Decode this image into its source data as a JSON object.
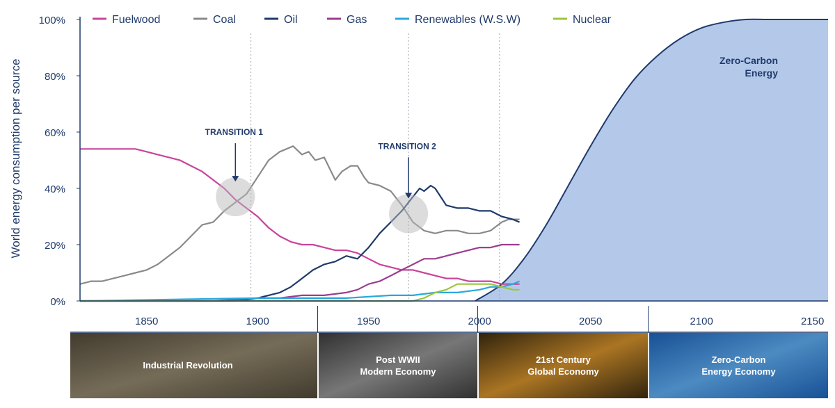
{
  "chart_data": {
    "type": "line",
    "xlabel": "",
    "ylabel": "World energy consumption per source",
    "xlim": [
      1820,
      2157
    ],
    "ylim": [
      0,
      100
    ],
    "x_ticks": [
      "1850",
      "1900",
      "1950",
      "2000",
      "2050",
      "2100",
      "2150"
    ],
    "y_ticks": [
      "0%",
      "20%",
      "40%",
      "60%",
      "80%",
      "100%"
    ],
    "grid": false,
    "legend_position": "top",
    "series": [
      {
        "name": "Fuelwood",
        "color": "#c8449a",
        "x": [
          1820,
          1830,
          1840,
          1845,
          1850,
          1855,
          1860,
          1865,
          1870,
          1875,
          1880,
          1885,
          1890,
          1895,
          1900,
          1905,
          1910,
          1915,
          1920,
          1925,
          1930,
          1935,
          1940,
          1945,
          1950,
          1955,
          1960,
          1965,
          1970,
          1975,
          1980,
          1985,
          1990,
          1995,
          2000,
          2005,
          2010,
          2015,
          2018
        ],
        "y": [
          54,
          54,
          54,
          54,
          53,
          52,
          51,
          50,
          48,
          46,
          43,
          40,
          36,
          33,
          30,
          26,
          23,
          21,
          20,
          20,
          19,
          18,
          18,
          17,
          15,
          13,
          12,
          11,
          11,
          10,
          9,
          8,
          8,
          7,
          7,
          7,
          6,
          6,
          6
        ]
      },
      {
        "name": "Coal",
        "color": "#8a8a8a",
        "x": [
          1820,
          1825,
          1830,
          1835,
          1840,
          1845,
          1850,
          1855,
          1860,
          1865,
          1870,
          1875,
          1880,
          1885,
          1890,
          1895,
          1900,
          1905,
          1910,
          1913,
          1916,
          1920,
          1923,
          1926,
          1930,
          1935,
          1938,
          1942,
          1945,
          1948,
          1950,
          1955,
          1960,
          1965,
          1970,
          1975,
          1980,
          1985,
          1990,
          1995,
          2000,
          2005,
          2010,
          2013,
          2018
        ],
        "y": [
          6,
          7,
          7,
          8,
          9,
          10,
          11,
          13,
          16,
          19,
          23,
          27,
          28,
          32,
          35,
          38,
          44,
          50,
          53,
          54,
          55,
          52,
          53,
          50,
          51,
          43,
          46,
          48,
          48,
          44,
          42,
          41,
          39,
          34,
          28,
          25,
          24,
          25,
          25,
          24,
          24,
          25,
          28,
          29,
          29
        ]
      },
      {
        "name": "Oil",
        "color": "#1f3a6b",
        "x": [
          1820,
          1870,
          1880,
          1890,
          1900,
          1905,
          1910,
          1915,
          1920,
          1925,
          1930,
          1935,
          1940,
          1945,
          1950,
          1955,
          1960,
          1965,
          1970,
          1973,
          1975,
          1978,
          1980,
          1985,
          1990,
          1995,
          2000,
          2005,
          2010,
          2015,
          2018
        ],
        "y": [
          0,
          0,
          0,
          0,
          1,
          2,
          3,
          5,
          8,
          11,
          13,
          14,
          16,
          15,
          19,
          24,
          28,
          32,
          37,
          40,
          39,
          41,
          40,
          34,
          33,
          33,
          32,
          32,
          30,
          29,
          28
        ]
      },
      {
        "name": "Gas",
        "color": "#9c3d8e",
        "x": [
          1820,
          1880,
          1900,
          1910,
          1920,
          1930,
          1940,
          1945,
          1950,
          1955,
          1960,
          1965,
          1970,
          1975,
          1980,
          1985,
          1990,
          1995,
          2000,
          2005,
          2010,
          2015,
          2018
        ],
        "y": [
          0,
          0,
          1,
          1,
          2,
          2,
          3,
          4,
          6,
          7,
          9,
          11,
          13,
          15,
          15,
          16,
          17,
          18,
          19,
          19,
          20,
          20,
          20
        ]
      },
      {
        "name": "Renewables (W.S.W)",
        "color": "#29a8df",
        "x": [
          1820,
          1900,
          1920,
          1940,
          1960,
          1970,
          1980,
          1990,
          2000,
          2005,
          2010,
          2015,
          2018
        ],
        "y": [
          0,
          1,
          1,
          1,
          2,
          2,
          3,
          3,
          4,
          5,
          5,
          6,
          7
        ]
      },
      {
        "name": "Nuclear",
        "color": "#9bc53d",
        "x": [
          1820,
          1965,
          1970,
          1975,
          1980,
          1985,
          1990,
          1995,
          2000,
          2005,
          2010,
          2015,
          2018
        ],
        "y": [
          0,
          0,
          0,
          1,
          3,
          4,
          6,
          6,
          6,
          6,
          5,
          4,
          4
        ]
      }
    ],
    "zero_carbon_area": {
      "label_line1": "Zero-Carbon",
      "label_line2": "Energy",
      "color": "#b4c9ea",
      "stroke": "#1f3a6b",
      "x": [
        1998,
        2010,
        2020,
        2030,
        2040,
        2050,
        2060,
        2070,
        2080,
        2090,
        2100,
        2110,
        2120,
        2130,
        2140,
        2150,
        2157
      ],
      "y": [
        0,
        6,
        15,
        27,
        41,
        55,
        68,
        79,
        87,
        93,
        97,
        99,
        100,
        100,
        100,
        100,
        100
      ]
    },
    "annotations": [
      {
        "text": "TRANSITION 1",
        "x": 1890,
        "y": 37,
        "label_y": 59
      },
      {
        "text": "TRANSITION 2",
        "x": 1968,
        "y": 31,
        "label_y": 54
      }
    ],
    "vertical_markers": [
      1897,
      1968,
      2009
    ],
    "banners": [
      {
        "label_line1": "Industrial Revolution",
        "label_line2": "",
        "color_a": "#4e4636",
        "color_b": "#8a7f68"
      },
      {
        "label_line1": "Post WWII",
        "label_line2": "Modern Economy",
        "color_a": "#3a3a3a",
        "color_b": "#8c8c8c"
      },
      {
        "label_line1": "21st Century",
        "label_line2": "Global Economy",
        "color_a": "#3a2a10",
        "color_b": "#c98a2a"
      },
      {
        "label_line1": "Zero-Carbon",
        "label_line2": "Energy Economy",
        "color_a": "#1d5fb0",
        "color_b": "#5aa3e4"
      }
    ]
  }
}
